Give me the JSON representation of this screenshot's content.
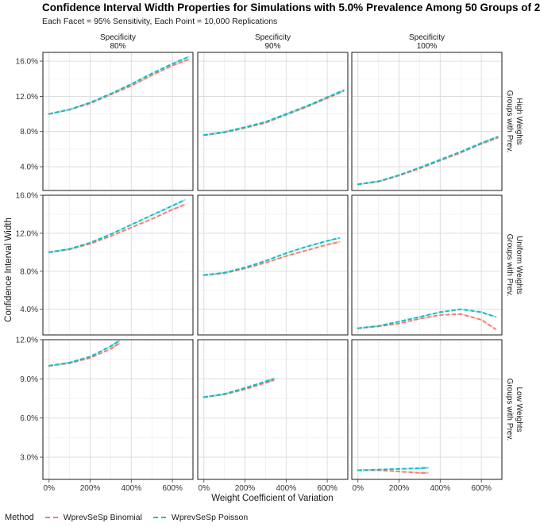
{
  "title": "Confidence Interval Width Properties for Simulations with 5.0% Prevalence Among 50 Groups of 2",
  "subtitle": "Each Facet = 95% Sensitivity, Each Point = 10,000 Replications",
  "colors": {
    "binomial": "#f8766d",
    "poisson": "#00bfc4"
  },
  "chart_data": {
    "type": "scatter",
    "xlabel": "Weight Coefficient of Variation",
    "ylabel": "Confidence Interval Width",
    "x_ticks": [
      0,
      200,
      400,
      600
    ],
    "x_tick_labels": [
      "0%",
      "200%",
      "400%",
      "600%"
    ],
    "xlim": [
      -30,
      700
    ],
    "legend": {
      "title": "Method",
      "position": "bottom",
      "entries": [
        "WprevSeSp Binomial",
        "WprevSeSp Poisson"
      ]
    },
    "columns": [
      {
        "label_line1": "Specificity",
        "label_line2": "80%"
      },
      {
        "label_line1": "Specificity",
        "label_line2": "90%"
      },
      {
        "label_line1": "Specificity",
        "label_line2": "100%"
      }
    ],
    "rows": [
      {
        "label_line1": "Groups with Prev.",
        "label_line2": "High Weights",
        "ylim": [
          1.3,
          17.0
        ],
        "y_ticks": [
          4.0,
          8.0,
          12.0,
          16.0
        ],
        "y_tick_labels": [
          "4.0%",
          "8.0%",
          "12.0%",
          "16.0%"
        ]
      },
      {
        "label_line1": "Groups with Prev.",
        "label_line2": "Uniform Weights",
        "ylim": [
          1.3,
          16.0
        ],
        "y_ticks": [
          4.0,
          8.0,
          12.0,
          16.0
        ],
        "y_tick_labels": [
          "4.0%",
          "8.0%",
          "12.0%",
          "16.0%"
        ]
      },
      {
        "label_line1": "Groups with Prev.",
        "label_line2": "Low Weights",
        "ylim": [
          1.3,
          12.0
        ],
        "y_ticks": [
          3.0,
          6.0,
          9.0,
          12.0
        ],
        "y_tick_labels": [
          "3.0%",
          "6.0%",
          "9.0%",
          "12.0%"
        ]
      }
    ],
    "series": [
      {
        "name": "WprevSeSp Binomial",
        "facets": [
          {
            "row": 0,
            "col": 0,
            "x": [
              0,
              100,
              200,
              300,
              400,
              500,
              600,
              680
            ],
            "y": [
              10.0,
              10.5,
              11.2,
              12.2,
              13.2,
              14.4,
              15.5,
              16.2
            ]
          },
          {
            "row": 0,
            "col": 1,
            "x": [
              0,
              100,
              200,
              300,
              400,
              500,
              600,
              680
            ],
            "y": [
              7.6,
              7.9,
              8.4,
              9.0,
              9.9,
              10.8,
              11.8,
              12.6
            ]
          },
          {
            "row": 0,
            "col": 2,
            "x": [
              0,
              100,
              200,
              300,
              400,
              500,
              600,
              680
            ],
            "y": [
              2.0,
              2.3,
              3.0,
              3.8,
              4.7,
              5.6,
              6.6,
              7.3
            ]
          },
          {
            "row": 1,
            "col": 0,
            "x": [
              0,
              100,
              200,
              300,
              400,
              500,
              600,
              660
            ],
            "y": [
              10.0,
              10.3,
              10.9,
              11.7,
              12.6,
              13.5,
              14.5,
              15.0
            ]
          },
          {
            "row": 1,
            "col": 1,
            "x": [
              0,
              100,
              200,
              300,
              400,
              500,
              600,
              660
            ],
            "y": [
              7.6,
              7.8,
              8.3,
              8.9,
              9.6,
              10.2,
              10.8,
              11.1
            ]
          },
          {
            "row": 1,
            "col": 2,
            "x": [
              0,
              100,
              200,
              300,
              400,
              500,
              600,
              670
            ],
            "y": [
              2.0,
              2.2,
              2.5,
              3.0,
              3.4,
              3.5,
              2.9,
              1.9
            ]
          },
          {
            "row": 2,
            "col": 0,
            "x": [
              0,
              100,
              200,
              300,
              340
            ],
            "y": [
              10.0,
              10.2,
              10.6,
              11.3,
              11.7
            ]
          },
          {
            "row": 2,
            "col": 1,
            "x": [
              0,
              100,
              200,
              300,
              340
            ],
            "y": [
              7.6,
              7.8,
              8.2,
              8.7,
              8.9
            ]
          },
          {
            "row": 2,
            "col": 2,
            "x": [
              0,
              100,
              200,
              300,
              340
            ],
            "y": [
              2.0,
              2.0,
              1.9,
              1.8,
              1.8
            ]
          }
        ]
      },
      {
        "name": "WprevSeSp Poisson",
        "facets": [
          {
            "row": 0,
            "col": 0,
            "x": [
              0,
              100,
              200,
              300,
              400,
              500,
              600,
              680
            ],
            "y": [
              10.0,
              10.5,
              11.3,
              12.3,
              13.4,
              14.6,
              15.7,
              16.5
            ]
          },
          {
            "row": 0,
            "col": 1,
            "x": [
              0,
              100,
              200,
              300,
              400,
              500,
              600,
              680
            ],
            "y": [
              7.6,
              7.95,
              8.5,
              9.1,
              10.0,
              10.9,
              11.9,
              12.7
            ]
          },
          {
            "row": 0,
            "col": 2,
            "x": [
              0,
              100,
              200,
              300,
              400,
              500,
              600,
              680
            ],
            "y": [
              2.0,
              2.35,
              3.05,
              3.9,
              4.8,
              5.7,
              6.7,
              7.4
            ]
          },
          {
            "row": 1,
            "col": 0,
            "x": [
              0,
              100,
              200,
              300,
              400,
              500,
              600,
              660
            ],
            "y": [
              10.0,
              10.35,
              11.0,
              11.9,
              12.9,
              13.9,
              14.9,
              15.5
            ]
          },
          {
            "row": 1,
            "col": 1,
            "x": [
              0,
              100,
              200,
              300,
              400,
              500,
              600,
              660
            ],
            "y": [
              7.6,
              7.85,
              8.4,
              9.1,
              9.9,
              10.6,
              11.2,
              11.5
            ]
          },
          {
            "row": 1,
            "col": 2,
            "x": [
              0,
              100,
              200,
              300,
              400,
              500,
              600,
              670
            ],
            "y": [
              2.0,
              2.25,
              2.7,
              3.2,
              3.7,
              4.0,
              3.7,
              3.2
            ]
          },
          {
            "row": 2,
            "col": 0,
            "x": [
              0,
              100,
              200,
              300,
              340
            ],
            "y": [
              10.0,
              10.25,
              10.7,
              11.5,
              11.9
            ]
          },
          {
            "row": 2,
            "col": 1,
            "x": [
              0,
              100,
              200,
              300,
              340
            ],
            "y": [
              7.6,
              7.85,
              8.3,
              8.8,
              9.0
            ]
          },
          {
            "row": 2,
            "col": 2,
            "x": [
              0,
              100,
              200,
              300,
              340
            ],
            "y": [
              2.0,
              2.05,
              2.1,
              2.15,
              2.2
            ]
          }
        ]
      }
    ]
  }
}
